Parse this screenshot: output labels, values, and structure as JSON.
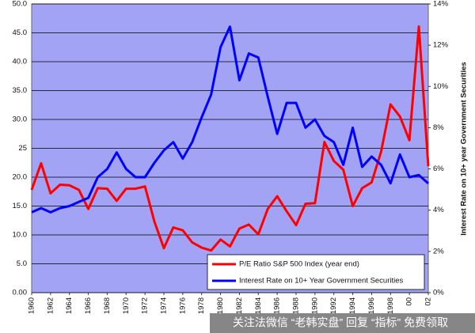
{
  "chart_data": {
    "type": "line",
    "y2_label": "Interest Rate on 10+ year Government Securities",
    "watermark": "关注法微信 “老韩实盘” 回复 “指标” 免费领取",
    "x": [
      1960,
      1961,
      1962,
      1963,
      1964,
      1965,
      1966,
      1967,
      1968,
      1969,
      1970,
      1971,
      1972,
      1973,
      1974,
      1975,
      1976,
      1977,
      1978,
      1979,
      1980,
      1981,
      1982,
      1983,
      1984,
      1985,
      1986,
      1987,
      1988,
      1989,
      1990,
      1991,
      1992,
      1993,
      1994,
      1995,
      1996,
      1997,
      1998,
      1999,
      2000,
      2001,
      2002
    ],
    "xlim": [
      1960,
      2002
    ],
    "xticks": [
      1960,
      1962,
      1964,
      1966,
      1968,
      1970,
      1972,
      1974,
      1976,
      1978,
      1980,
      1982,
      1984,
      1986,
      1988,
      1990,
      1992,
      1994,
      1996,
      1998,
      {
        "value": 2000,
        "label": "00"
      },
      {
        "value": 2002,
        "label": "02"
      }
    ],
    "ylim": [
      0,
      50
    ],
    "yticks": [
      {
        "value": 0,
        "label": "0.00"
      },
      {
        "value": 5,
        "label": "5.0"
      },
      {
        "value": 10,
        "label": "10.0"
      },
      {
        "value": 15,
        "label": "15.0"
      },
      {
        "value": 20,
        "label": "20.0"
      },
      {
        "value": 25,
        "label": "25"
      },
      {
        "value": 30,
        "label": "30.0"
      },
      {
        "value": 35,
        "label": "35.0"
      },
      {
        "value": 40,
        "label": "40.0"
      },
      {
        "value": 45,
        "label": "45.0"
      },
      {
        "value": 50,
        "label": "50.0"
      }
    ],
    "y2lim": [
      0,
      14
    ],
    "y2ticks": [
      {
        "value": 0,
        "label": "0%"
      },
      {
        "value": 2,
        "label": "2%"
      },
      {
        "value": 4,
        "label": "4%"
      },
      {
        "value": 6,
        "label": "6%"
      },
      {
        "value": 8,
        "label": "8%"
      },
      {
        "value": 10,
        "label": "10%"
      },
      {
        "value": 12,
        "label": "12%"
      },
      {
        "value": 14,
        "label": "14%"
      }
    ],
    "grid": true,
    "series": [
      {
        "name": "P/E Ratio S&P 500 Index (year end)",
        "color": "#ff0000",
        "axis": "y",
        "values": [
          17.8,
          22.4,
          17.2,
          18.7,
          18.6,
          17.8,
          14.5,
          18.1,
          18.0,
          15.9,
          18.0,
          18.0,
          18.4,
          12.3,
          7.7,
          11.3,
          10.8,
          8.7,
          7.8,
          7.3,
          9.2,
          8.0,
          11.1,
          11.8,
          10.1,
          14.5,
          16.7,
          14.1,
          11.7,
          15.4,
          15.5,
          26.1,
          22.8,
          21.3,
          15.0,
          18.1,
          19.1,
          24.4,
          32.6,
          30.5,
          26.4,
          46.1,
          21.9
        ]
      },
      {
        "name": "Interest Rate on 10+ Year Government Securities",
        "color": "#0000ff",
        "axis": "y2",
        "values": [
          3.9,
          4.1,
          3.9,
          4.1,
          4.2,
          4.4,
          4.6,
          5.6,
          6.0,
          6.8,
          6.0,
          5.6,
          5.6,
          6.3,
          6.9,
          7.3,
          6.5,
          7.3,
          8.5,
          9.6,
          11.9,
          12.9,
          10.3,
          11.6,
          11.4,
          9.5,
          7.7,
          9.2,
          9.2,
          8.0,
          8.4,
          7.6,
          7.3,
          6.2,
          8.0,
          6.1,
          6.6,
          6.2,
          5.3,
          6.7,
          5.6,
          5.7,
          5.3
        ]
      }
    ]
  }
}
